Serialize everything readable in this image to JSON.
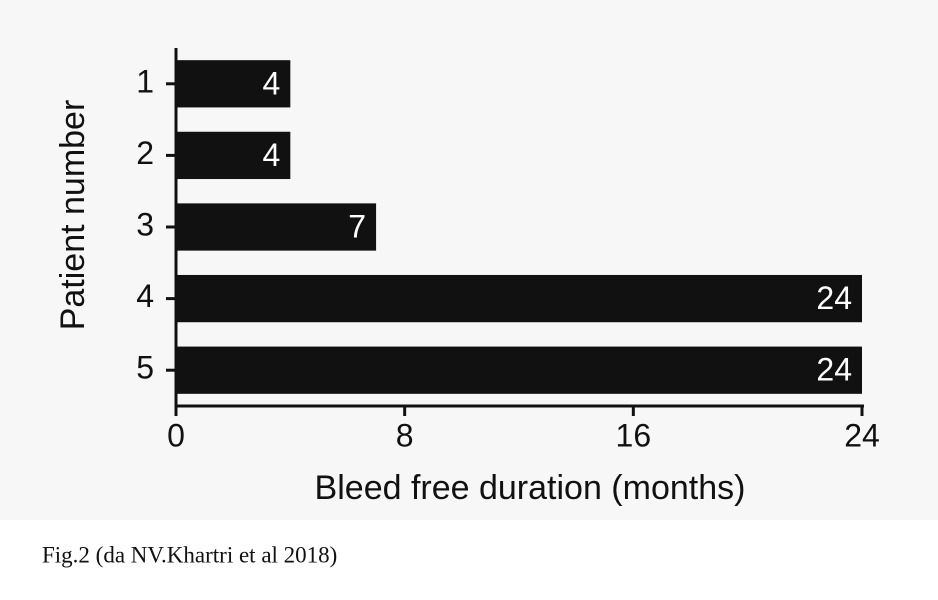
{
  "chart_data": {
    "type": "barh",
    "xlabel": "Bleed free duration (months)",
    "ylabel": "Patient number",
    "categories": [
      "1",
      "2",
      "3",
      "4",
      "5"
    ],
    "values": [
      4,
      4,
      7,
      24,
      24
    ],
    "color": "#111111",
    "label_color": "#ffffff",
    "xlim": [
      0,
      24
    ],
    "xticks": [
      0,
      8,
      16,
      24
    ],
    "caption": "Fig.2 (da NV.Khartri et al  2018)"
  }
}
